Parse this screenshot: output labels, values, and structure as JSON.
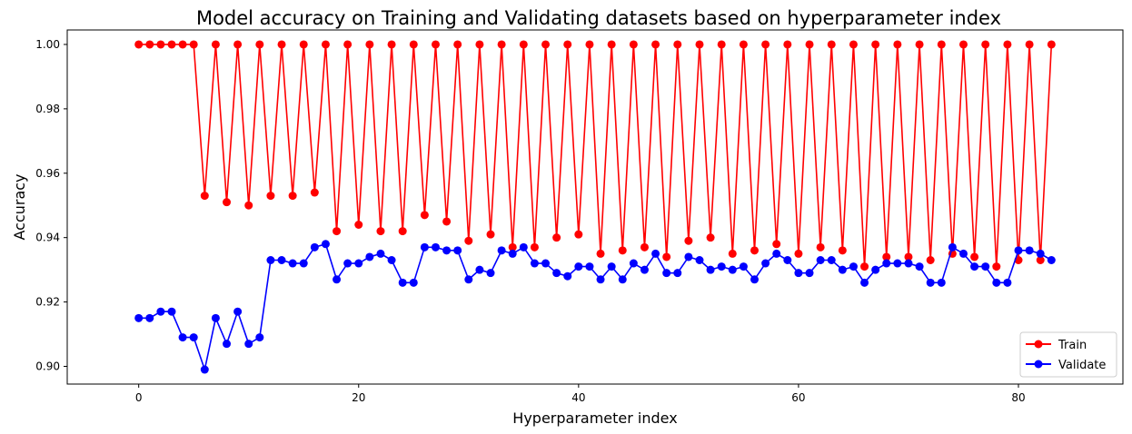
{
  "chart_data": {
    "type": "line",
    "title": "Model accuracy on Training and Validating datasets based on hyperparameter index",
    "xlabel": "Hyperparameter index",
    "ylabel": "Accuracy",
    "xlim": [
      -6.5,
      89.5
    ],
    "ylim": [
      0.8945,
      1.0045
    ],
    "x_ticks": [
      0,
      20,
      40,
      60,
      80
    ],
    "y_ticks": [
      0.9,
      0.92,
      0.94,
      0.96,
      0.98,
      1.0
    ],
    "x_tick_labels": [
      "0",
      "20",
      "40",
      "60",
      "80"
    ],
    "y_tick_labels": [
      "0.90",
      "0.92",
      "0.94",
      "0.96",
      "0.98",
      "1.00"
    ],
    "grid": false,
    "legend_position": "lower-right",
    "x": [
      0,
      1,
      2,
      3,
      4,
      5,
      6,
      7,
      8,
      9,
      10,
      11,
      12,
      13,
      14,
      15,
      16,
      17,
      18,
      19,
      20,
      21,
      22,
      23,
      24,
      25,
      26,
      27,
      28,
      29,
      30,
      31,
      32,
      33,
      34,
      35,
      36,
      37,
      38,
      39,
      40,
      41,
      42,
      43,
      44,
      45,
      46,
      47,
      48,
      49,
      50,
      51,
      52,
      53,
      54,
      55,
      56,
      57,
      58,
      59,
      60,
      61,
      62,
      63,
      64,
      65,
      66,
      67,
      68,
      69,
      70,
      71,
      72,
      73,
      74,
      75,
      76,
      77,
      78,
      79,
      80,
      81,
      82,
      83
    ],
    "series": [
      {
        "name": "Train",
        "color": "#ff0000",
        "marker": "circle",
        "values": [
          1.0,
          1.0,
          1.0,
          1.0,
          1.0,
          1.0,
          0.953,
          1.0,
          0.951,
          1.0,
          0.95,
          1.0,
          0.953,
          1.0,
          0.953,
          1.0,
          0.954,
          1.0,
          0.942,
          1.0,
          0.944,
          1.0,
          0.942,
          1.0,
          0.942,
          1.0,
          0.947,
          1.0,
          0.945,
          1.0,
          0.939,
          1.0,
          0.941,
          1.0,
          0.937,
          1.0,
          0.937,
          1.0,
          0.94,
          1.0,
          0.941,
          1.0,
          0.935,
          1.0,
          0.936,
          1.0,
          0.937,
          1.0,
          0.934,
          1.0,
          0.939,
          1.0,
          0.94,
          1.0,
          0.935,
          1.0,
          0.936,
          1.0,
          0.938,
          1.0,
          0.935,
          1.0,
          0.937,
          1.0,
          0.936,
          1.0,
          0.931,
          1.0,
          0.934,
          1.0,
          0.934,
          1.0,
          0.933,
          1.0,
          0.935,
          1.0,
          0.934,
          1.0,
          0.931,
          1.0,
          0.933,
          1.0,
          0.933,
          1.0
        ]
      },
      {
        "name": "Validate",
        "color": "#0000ff",
        "marker": "circle",
        "values": [
          0.915,
          0.915,
          0.917,
          0.917,
          0.909,
          0.909,
          0.899,
          0.915,
          0.907,
          0.917,
          0.907,
          0.909,
          0.933,
          0.933,
          0.932,
          0.932,
          0.937,
          0.938,
          0.927,
          0.932,
          0.932,
          0.934,
          0.935,
          0.933,
          0.926,
          0.926,
          0.937,
          0.937,
          0.936,
          0.936,
          0.927,
          0.93,
          0.929,
          0.936,
          0.935,
          0.937,
          0.932,
          0.932,
          0.929,
          0.928,
          0.931,
          0.931,
          0.927,
          0.931,
          0.927,
          0.932,
          0.93,
          0.935,
          0.929,
          0.929,
          0.934,
          0.933,
          0.93,
          0.931,
          0.93,
          0.931,
          0.927,
          0.932,
          0.935,
          0.933,
          0.929,
          0.929,
          0.933,
          0.933,
          0.93,
          0.931,
          0.926,
          0.93,
          0.932,
          0.932,
          0.932,
          0.931,
          0.926,
          0.926,
          0.937,
          0.935,
          0.931,
          0.931,
          0.926,
          0.926,
          0.936,
          0.936,
          0.935,
          0.933
        ]
      }
    ]
  }
}
